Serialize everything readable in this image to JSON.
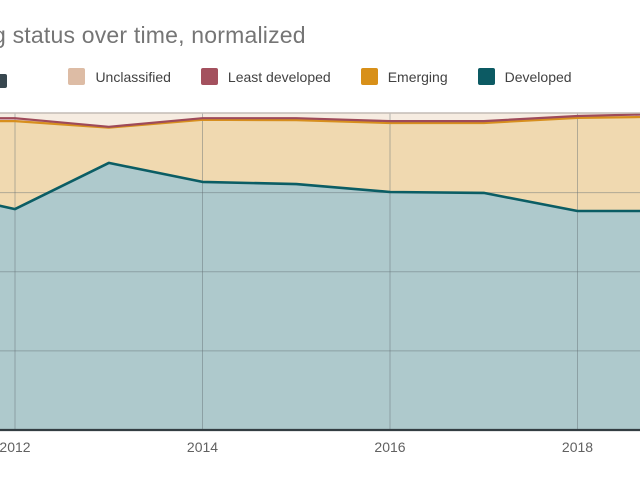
{
  "title": "g status over time, normalized",
  "legend": {
    "items": [
      {
        "label": "Unclassified",
        "color": "#ddbca5"
      },
      {
        "label": "Least developed",
        "color": "#a4515e"
      },
      {
        "label": "Emerging",
        "color": "#d89019"
      },
      {
        "label": "Developed",
        "color": "#0c5a63"
      }
    ]
  },
  "x_axis": {
    "ticks": [
      {
        "label": "2012",
        "year": 2012
      },
      {
        "label": "2014",
        "year": 2014
      },
      {
        "label": "2016",
        "year": 2016
      },
      {
        "label": "2018",
        "year": 2018
      }
    ]
  },
  "chart_data": {
    "type": "area",
    "stacked": true,
    "normalized": true,
    "title": "g status over time, normalized",
    "x": [
      2011.8,
      2012,
      2013,
      2014,
      2015,
      2016,
      2017,
      2018,
      2018.7
    ],
    "x_tick_years": [
      2012,
      2014,
      2016,
      2018
    ],
    "ylim": [
      0,
      100
    ],
    "y_gridlines_pct": [
      25,
      50,
      75
    ],
    "grid": true,
    "legend_position": "top",
    "series": [
      {
        "name": "Developed",
        "line_color": "#0b5d64",
        "fill_color": "#aec9cc",
        "line_width": 2.6,
        "values": [
          71.1,
          69.8,
          84.4,
          78.4,
          77.7,
          75.2,
          74.9,
          69.2,
          69.2
        ]
      },
      {
        "name": "Emerging",
        "line_color": "#d78f1e",
        "fill_color": "#f0d9b0",
        "line_width": 2.2,
        "values": [
          26.5,
          27.8,
          11.1,
          19.6,
          20.2,
          21.8,
          22.1,
          29.4,
          29.7
        ]
      },
      {
        "name": "Least developed",
        "line_color": "#9e4a59",
        "fill_color": "#dfc0c6",
        "line_width": 2.2,
        "values": [
          0.9,
          0.9,
          0.3,
          0.5,
          0.6,
          0.6,
          0.6,
          0.6,
          0.8
        ]
      },
      {
        "name": "Unclassified",
        "line_color": "#ddbca5",
        "fill_color": "#f6ece1",
        "line_width": 1.5,
        "values": [
          1.5,
          1.5,
          4.2,
          1.5,
          1.5,
          2.4,
          2.4,
          0.8,
          0.3
        ]
      }
    ],
    "colors": {
      "plot_top_border": "#c4bcb6",
      "axis_line": "#333d42",
      "gridline": "rgba(100,110,115,0.45)"
    }
  }
}
